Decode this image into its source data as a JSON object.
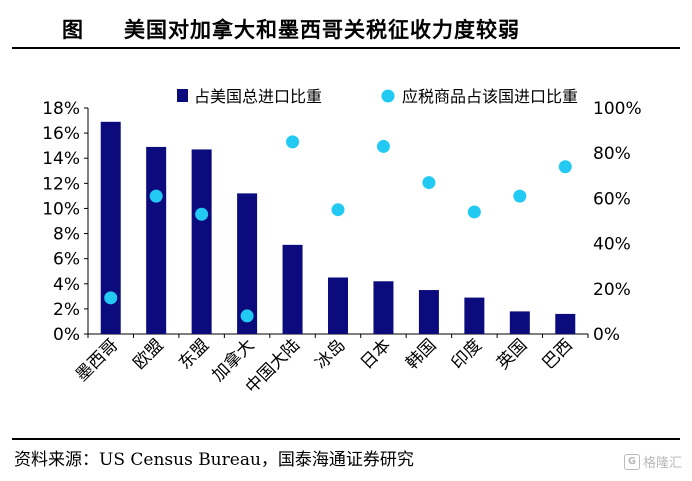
{
  "title": {
    "label": "图",
    "text": "美国对加拿大和墨西哥关税征收力度较弱"
  },
  "source": "资料来源：US Census Bureau，国泰海通证券研究",
  "watermark": {
    "text": "格隆汇",
    "icon": "G"
  },
  "colors": {
    "bar": "#0b0b7e",
    "dot": "#22c9f2"
  },
  "chart_data": {
    "type": "bar+scatter",
    "categories": [
      "墨西哥",
      "欧盟",
      "东盟",
      "加拿大",
      "中国大陆",
      "冰岛",
      "日本",
      "韩国",
      "印度",
      "英国",
      "巴西"
    ],
    "series": [
      {
        "name": "占美国总进口比重",
        "type": "bar",
        "axis": "left",
        "values": [
          16.9,
          14.9,
          14.7,
          11.2,
          7.1,
          4.5,
          4.2,
          3.5,
          2.9,
          1.8,
          1.6
        ]
      },
      {
        "name": "应税商品占该国进口比重",
        "type": "scatter",
        "axis": "right",
        "values": [
          16,
          61,
          53,
          8,
          85,
          55,
          83,
          67,
          54,
          61,
          74
        ]
      }
    ],
    "left_axis": {
      "min": 0,
      "max": 18,
      "step": 2,
      "tick_labels": [
        "0%",
        "2%",
        "4%",
        "6%",
        "8%",
        "10%",
        "12%",
        "14%",
        "16%",
        "18%"
      ]
    },
    "right_axis": {
      "min": 0,
      "max": 100,
      "step": 20,
      "tick_labels": [
        "0%",
        "20%",
        "40%",
        "60%",
        "80%",
        "100%"
      ]
    },
    "legend_position": "top",
    "grid": false
  }
}
